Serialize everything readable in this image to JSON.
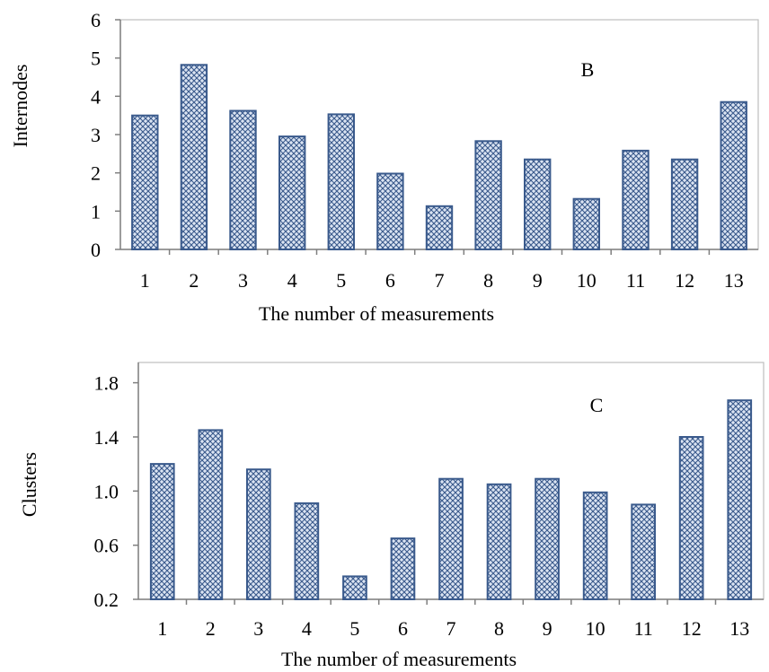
{
  "chart_data": [
    {
      "type": "bar",
      "panel_label": "B",
      "title": "",
      "xlabel": "The number of measurements",
      "ylabel": "Internodes",
      "categories": [
        "1",
        "2",
        "3",
        "4",
        "5",
        "6",
        "7",
        "8",
        "9",
        "10",
        "11",
        "12",
        "13"
      ],
      "values": [
        3.5,
        4.82,
        3.62,
        2.95,
        3.53,
        1.98,
        1.13,
        2.83,
        2.35,
        1.32,
        2.58,
        2.35,
        3.85
      ],
      "ylim": [
        0,
        6
      ],
      "yticks": [
        0,
        1,
        2,
        3,
        4,
        5,
        6
      ],
      "ytick_labels": [
        "0",
        "1",
        "2",
        "3",
        "4",
        "5",
        "6"
      ],
      "grid": false,
      "colors": {
        "bar_stroke": "#3a5a8c",
        "bar_fill": "#dbe4f2",
        "pattern": "#3a5a8c"
      }
    },
    {
      "type": "bar",
      "panel_label": "C",
      "title": "",
      "xlabel": "The number of measurements",
      "ylabel": "Clusters",
      "categories": [
        "1",
        "2",
        "3",
        "4",
        "5",
        "6",
        "7",
        "8",
        "9",
        "10",
        "11",
        "12",
        "13"
      ],
      "values": [
        1.2,
        1.45,
        1.16,
        0.91,
        0.37,
        0.65,
        1.09,
        1.05,
        1.09,
        0.99,
        0.9,
        1.4,
        1.67
      ],
      "ylim": [
        0.2,
        1.95
      ],
      "yticks": [
        0.2,
        0.6,
        1.0,
        1.4,
        1.8
      ],
      "ytick_labels": [
        "0.2",
        "0.6",
        "1.0",
        "1.4",
        "1.8"
      ],
      "grid": false,
      "colors": {
        "bar_stroke": "#3a5a8c",
        "bar_fill": "#dbe4f2",
        "pattern": "#3a5a8c"
      }
    }
  ]
}
